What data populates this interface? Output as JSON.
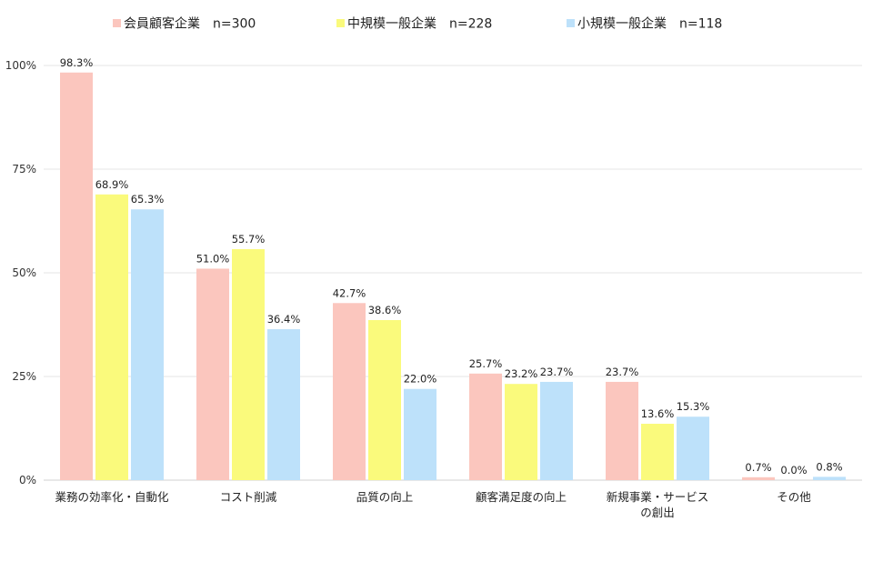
{
  "chart_data": {
    "type": "bar",
    "categories": [
      "業務の効率化・自動化",
      "コスト削減",
      "品質の向上",
      "顧客満足度の向上",
      "新規事業・サービス\nの創出",
      "その他"
    ],
    "series": [
      {
        "name": "会員顧客企業　n=300",
        "color": "#FBC6BE",
        "values": [
          98.3,
          51.0,
          42.7,
          25.7,
          23.7,
          0.7
        ]
      },
      {
        "name": "中規模一般企業　n=228",
        "color": "#FAFA7C",
        "values": [
          68.9,
          55.7,
          38.6,
          23.2,
          13.6,
          0.0
        ]
      },
      {
        "name": "小規模一般企業　n=118",
        "color": "#BDE1FA",
        "values": [
          65.3,
          36.4,
          22.0,
          23.7,
          15.3,
          0.8
        ]
      }
    ],
    "ylim": [
      0,
      100
    ],
    "yticks": [
      0,
      25,
      50,
      75,
      100
    ],
    "ytick_labels": [
      "0%",
      "25%",
      "50%",
      "75%",
      "100%"
    ],
    "value_suffix": "%",
    "value_decimals": 1,
    "grid": true,
    "legend_position": "top"
  }
}
